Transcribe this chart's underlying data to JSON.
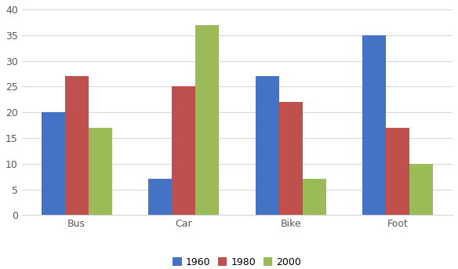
{
  "categories": [
    "Bus",
    "Car",
    "Bike",
    "Foot"
  ],
  "series": {
    "1960": [
      20,
      7,
      27,
      35
    ],
    "1980": [
      27,
      25,
      22,
      17
    ],
    "2000": [
      17,
      37,
      7,
      10
    ]
  },
  "colors": {
    "1960": "#4472C4",
    "1980": "#C0504D",
    "2000": "#9BBB59"
  },
  "ylim": [
    0,
    40
  ],
  "yticks": [
    0,
    5,
    10,
    15,
    20,
    25,
    30,
    35,
    40
  ],
  "legend_labels": [
    "1960",
    "1980",
    "2000"
  ],
  "bar_width": 0.22,
  "grid_color": "#D9D9D9",
  "bg_color": "#FFFFFF",
  "plot_bg_color": "#FFFFFF"
}
